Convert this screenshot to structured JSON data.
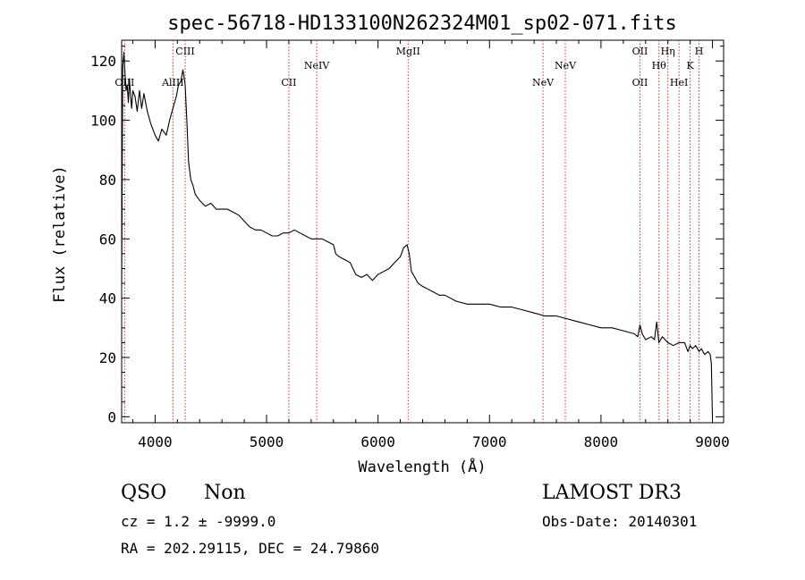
{
  "chart_data": {
    "type": "line",
    "title": "spec-56718-HD133100N262324M01_sp02-071.fits",
    "xlabel": "Wavelength (Å)",
    "ylabel": "Flux (relative)",
    "xlim": [
      3700,
      9100
    ],
    "ylim": [
      -2,
      127
    ],
    "x_ticks": [
      4000,
      5000,
      6000,
      7000,
      8000,
      9000
    ],
    "x_tick_labels": [
      "4000",
      "5000",
      "6000",
      "7000",
      "8000",
      "9000"
    ],
    "y_ticks": [
      0,
      20,
      40,
      60,
      80,
      100,
      120
    ],
    "y_tick_labels": [
      "0",
      "20",
      "40",
      "60",
      "80",
      "100",
      "120"
    ],
    "series": [
      {
        "name": "spectrum",
        "x": [
          3700,
          3710,
          3720,
          3730,
          3740,
          3750,
          3760,
          3770,
          3780,
          3790,
          3800,
          3820,
          3840,
          3860,
          3880,
          3900,
          3930,
          3960,
          4000,
          4030,
          4060,
          4100,
          4130,
          4160,
          4190,
          4210,
          4230,
          4250,
          4270,
          4285,
          4300,
          4320,
          4340,
          4360,
          4400,
          4450,
          4500,
          4550,
          4600,
          4650,
          4700,
          4750,
          4800,
          4850,
          4900,
          4950,
          5000,
          5050,
          5100,
          5150,
          5200,
          5250,
          5300,
          5350,
          5400,
          5450,
          5500,
          5550,
          5600,
          5620,
          5650,
          5700,
          5750,
          5800,
          5850,
          5900,
          5950,
          6000,
          6050,
          6100,
          6150,
          6200,
          6230,
          6260,
          6280,
          6300,
          6330,
          6360,
          6400,
          6450,
          6500,
          6550,
          6600,
          6700,
          6800,
          6900,
          7000,
          7100,
          7200,
          7300,
          7400,
          7500,
          7600,
          7700,
          7800,
          7900,
          8000,
          8100,
          8200,
          8300,
          8330,
          8350,
          8370,
          8400,
          8450,
          8480,
          8500,
          8520,
          8550,
          8600,
          8650,
          8700,
          8750,
          8780,
          8800,
          8820,
          8850,
          8880,
          8900,
          8930,
          8960,
          8980,
          8990,
          9000
        ],
        "y": [
          45,
          118,
          123,
          116,
          110,
          112,
          106,
          114,
          108,
          104,
          110,
          108,
          103,
          110,
          104,
          109,
          103,
          99,
          95,
          93,
          97,
          95,
          100,
          104,
          108,
          112,
          113,
          117,
          112,
          100,
          86,
          80,
          78,
          75,
          73,
          71,
          72,
          70,
          70,
          70,
          69,
          68,
          66,
          64,
          63,
          63,
          62,
          61,
          61,
          62,
          62,
          63,
          62,
          61,
          60,
          60,
          60,
          59,
          58,
          55,
          54,
          53,
          52,
          48,
          47,
          48,
          46,
          48,
          49,
          50,
          52,
          54,
          57,
          58,
          55,
          49,
          47,
          45,
          44,
          43,
          42,
          41,
          41,
          39,
          38,
          38,
          38,
          37,
          37,
          36,
          35,
          34,
          34,
          33,
          32,
          31,
          30,
          30,
          29,
          28,
          27,
          31,
          28,
          26,
          27,
          26,
          32,
          25,
          27,
          25,
          24,
          25,
          25,
          22,
          24,
          23,
          24,
          22,
          23,
          21,
          22,
          21,
          18,
          0
        ]
      }
    ],
    "emission_lines": [
      {
        "label": "OIII",
        "x": 3727,
        "tier": "lower"
      },
      {
        "label": "AlIII",
        "x": 4160,
        "tier": "lower"
      },
      {
        "label": "CIII",
        "x": 4270,
        "tier": "upper"
      },
      {
        "label": "CII",
        "x": 5200,
        "tier": "lower"
      },
      {
        "label": "NeIV",
        "x": 5450,
        "tier": "middle"
      },
      {
        "label": "MgII",
        "x": 6270,
        "tier": "upper"
      },
      {
        "label": "NeV",
        "x": 7480,
        "tier": "lower"
      },
      {
        "label": "NeV",
        "x": 7680,
        "tier": "middle"
      },
      {
        "label": "OII",
        "x": 8350,
        "tier": "upper"
      },
      {
        "label": "OII",
        "x": 8350,
        "tier": "lower"
      },
      {
        "label": "Hθ",
        "x": 8520,
        "tier": "middle"
      },
      {
        "label": "Hη",
        "x": 8600,
        "tier": "upper"
      },
      {
        "label": "HeI",
        "x": 8700,
        "tier": "lower"
      },
      {
        "label": "K",
        "x": 8800,
        "tier": "middle"
      },
      {
        "label": "H",
        "x": 8880,
        "tier": "upper"
      }
    ]
  },
  "info": {
    "class": "QSO",
    "subclass": "Non",
    "survey": "LAMOST DR3",
    "cz": "cz = 1.2 ± -9999.0",
    "obs_date": "Obs-Date: 20140301",
    "radec": "RA = 202.29115, DEC =  24.79860"
  },
  "colors": {
    "line_marker": "#c0392b",
    "spectrum": "#000000"
  }
}
